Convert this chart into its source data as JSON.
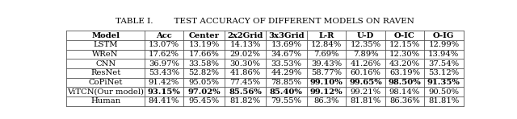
{
  "title_left": "TABLE I.",
  "title_right": "TEST ACCURACY OF DIFFERENT MODELS ON RAVEN",
  "columns": [
    "Model",
    "Acc",
    "Center",
    "2x2Grid",
    "3x3Grid",
    "L-R",
    "U-D",
    "O-IC",
    "O-IG"
  ],
  "rows": [
    [
      "LSTM",
      "13.07%",
      "13.19%",
      "14.13%",
      "13.69%",
      "12.84%",
      "12.35%",
      "12.15%",
      "12.99%"
    ],
    [
      "WReN",
      "17.62%",
      "17.66%",
      "29.02%",
      "34.67%",
      "7.69%",
      "7.89%",
      "12.30%",
      "13.94%"
    ],
    [
      "CNN",
      "36.97%",
      "33.58%",
      "30.30%",
      "33.53%",
      "39.43%",
      "41.26%",
      "43.20%",
      "37.54%"
    ],
    [
      "ResNet",
      "53.43%",
      "52.82%",
      "41.86%",
      "44.29%",
      "58.77%",
      "60.16%",
      "63.19%",
      "53.12%"
    ],
    [
      "CoPiNet",
      "91.42%",
      "95.05%",
      "77.45%",
      "78.85%",
      "99.10%",
      "99.65%",
      "98.50%",
      "91.35%"
    ],
    [
      "ViTCN(Our model)",
      "93.15%",
      "97.02%",
      "85.56%",
      "85.40%",
      "99.12%",
      "99.21%",
      "98.14%",
      "90.50%"
    ],
    [
      "Human",
      "84.41%",
      "95.45%",
      "81.82%",
      "79.55%",
      "86.3%",
      "81.81%",
      "86.36%",
      "81.81%"
    ]
  ],
  "copinet_bold_cols": [
    5,
    6,
    7,
    8
  ],
  "vitcn_bold_cols": [
    1,
    2,
    3,
    4,
    5
  ],
  "col_widths_rel": [
    1.55,
    0.78,
    0.82,
    0.82,
    0.82,
    0.78,
    0.78,
    0.78,
    0.78
  ],
  "bg_color": "#ffffff",
  "font_size": 7.2,
  "title_font_size": 7.5,
  "line_color": "#555555",
  "line_width": 0.6
}
